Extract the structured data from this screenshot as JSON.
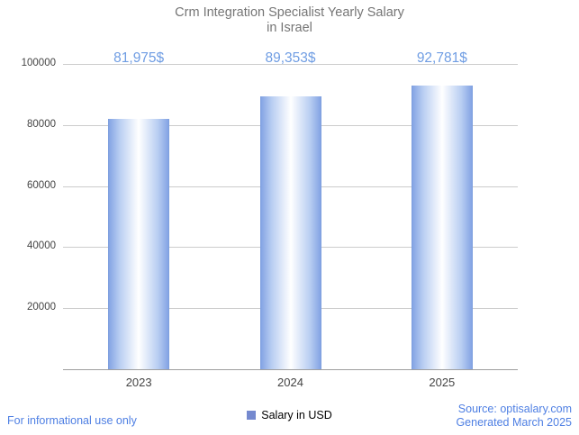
{
  "title": {
    "line1": "Crm Integration Specialist Yearly Salary",
    "line2": "in Israel"
  },
  "chart_data": {
    "type": "bar",
    "title": "Crm Integration Specialist Yearly Salary in Israel",
    "categories": [
      "2023",
      "2024",
      "2025"
    ],
    "values": [
      81975,
      89353,
      92781
    ],
    "value_labels": [
      "81,975$",
      "89,353$",
      "92,781$"
    ],
    "series_name": "Salary in USD",
    "xlabel": "",
    "ylabel": "",
    "ylim": [
      0,
      100000
    ],
    "ytick_step": 20000,
    "ytick_labels": [
      "20000",
      "40000",
      "60000",
      "80000",
      "100000"
    ],
    "grid": true,
    "legend_position": "bottom"
  },
  "legend": {
    "label": "Salary in USD",
    "swatch_color": "#7589cf"
  },
  "footer": {
    "left": "For informational use only",
    "source": "Source: optisalary.com",
    "generated": "Generated March 2025"
  },
  "colors": {
    "title": "#757575",
    "value_label": "#6f9de3",
    "bar_edge": "#84a4e4",
    "bar_center": "#ffffff",
    "grid": "#cccccc",
    "axis_line": "#9e9e9e",
    "tick_text": "#444444",
    "footer_text": "#4e7fe3"
  }
}
